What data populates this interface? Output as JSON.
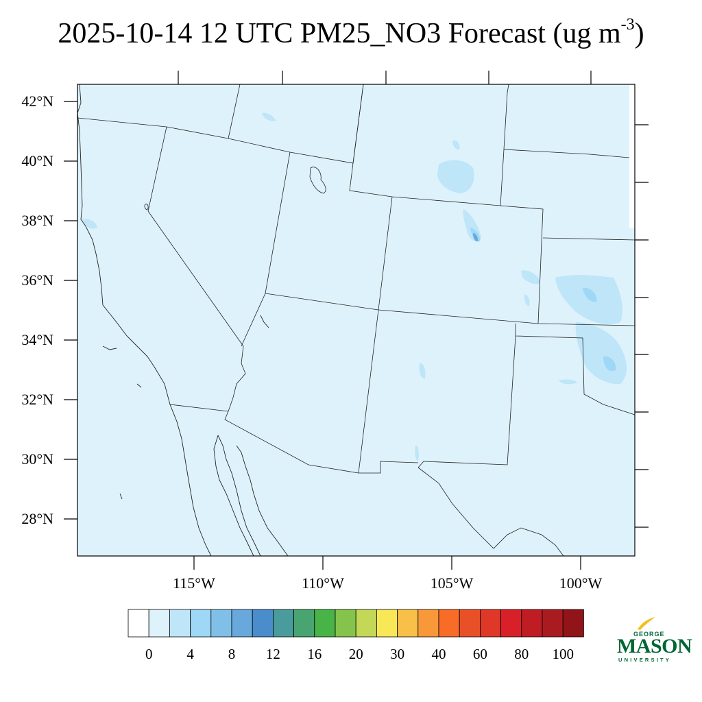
{
  "title": {
    "main": "2025-10-14 12 UTC PM25_NO3 Forecast (ug m",
    "exponent": "-3",
    "close": ")"
  },
  "map": {
    "region": "US Southwest",
    "fill_color": "#def2fc",
    "lat_labels": [
      "42°N",
      "40°N",
      "38°N",
      "36°N",
      "34°N",
      "32°N",
      "30°N",
      "28°N"
    ],
    "lon_labels": [
      "115°W",
      "110°W",
      "105°W",
      "100°W"
    ]
  },
  "colorbar": {
    "colors": [
      "#ffffff",
      "#def2fc",
      "#bee5f8",
      "#9ed8f6",
      "#80bfe8",
      "#68a8dc",
      "#4a8ccc",
      "#4a9c9c",
      "#48a470",
      "#48b448",
      "#84c44c",
      "#c4d858",
      "#f8e858",
      "#f8c048",
      "#f89838",
      "#f86c28",
      "#e85028",
      "#e03828",
      "#d82028",
      "#c01c24",
      "#a81c20",
      "#901418"
    ],
    "labels": [
      "0",
      "4",
      "8",
      "12",
      "16",
      "20",
      "30",
      "40",
      "60",
      "80",
      "100"
    ]
  },
  "logo": {
    "top": "GEORGE",
    "main": "MASON",
    "bottom": "UNIVERSITY",
    "color": "#006633",
    "accent": "#f0c020"
  }
}
